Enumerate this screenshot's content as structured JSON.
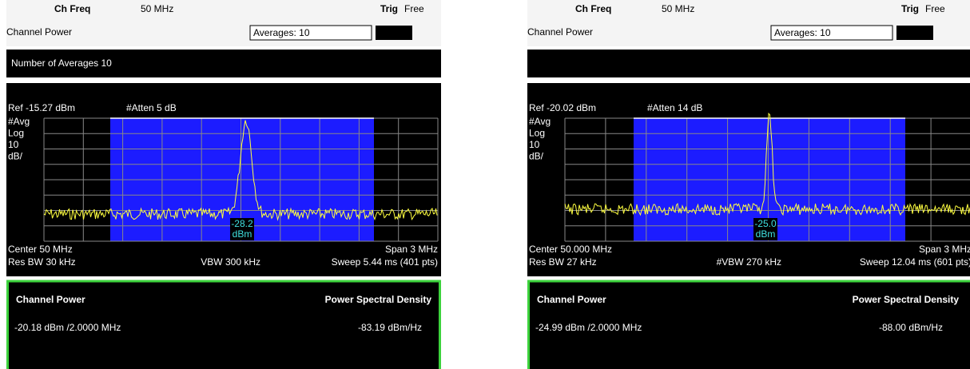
{
  "panels": [
    {
      "ch_freq_label": "Ch Freq",
      "ch_freq": "50 MHz",
      "trig_label": "Trig",
      "trig_value": "Free",
      "mode": "Channel Power",
      "averages": "Averages: 10",
      "banner": "Number of Averages 10",
      "ref": "Ref -15.27 dBm",
      "atten": "#Atten 5 dB",
      "scale": [
        "#Avg",
        "Log",
        "10",
        "dB/"
      ],
      "marker_value": "-28.2",
      "marker_unit": "dBm",
      "center": "Center 50 MHz",
      "span": "Span 3 MHz",
      "res_bw": "Res BW 30 kHz",
      "vbw": "VBW 300 kHz",
      "sweep": "Sweep 5.44 ms (401 pts)",
      "result_label_1": "Channel Power",
      "result_label_2": "Power Spectral Density",
      "result_value_1": "-20.18 dBm /2.0000 MHz",
      "result_value_2": "-83.19 dBm/Hz"
    },
    {
      "ch_freq_label": "Ch Freq",
      "ch_freq": "50 MHz",
      "trig_label": "Trig",
      "trig_value": "Free",
      "mode": "Channel Power",
      "averages": "Averages: 10",
      "ref": "Ref -20.02 dBm",
      "atten": "#Atten 14 dB",
      "scale": [
        "#Avg",
        "Log",
        "10",
        "dB/"
      ],
      "marker_value": "-25.0",
      "marker_unit": "dBm",
      "center": "Center 50.000 MHz",
      "span": "Span 3 MHz",
      "res_bw": "Res BW 27 kHz",
      "vbw": "#VBW 270 kHz",
      "sweep": "Sweep 12.04 ms (601 pts)",
      "result_label_1": "Channel Power",
      "result_label_2": "Power Spectral Density",
      "result_value_1": "-24.99 dBm /2.0000 MHz",
      "result_value_2": "-88.00 dBm/Hz"
    }
  ]
}
